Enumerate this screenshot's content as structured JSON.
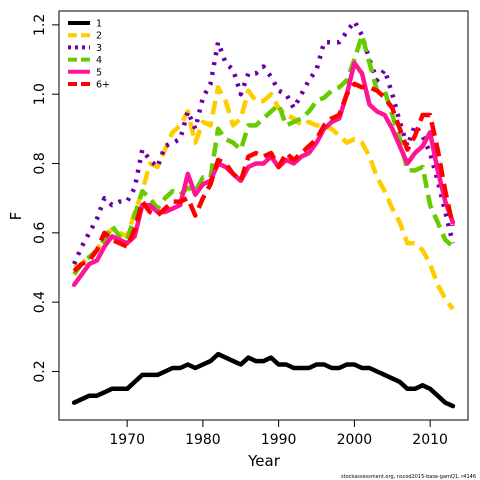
{
  "chart_data": {
    "type": "line",
    "xlabel": "Year",
    "ylabel": "F",
    "xlim": [
      1961,
      2015
    ],
    "ylim": [
      0.06,
      1.24
    ],
    "xticks": [
      1970,
      1980,
      1990,
      2000,
      2010
    ],
    "yticks": [
      0.2,
      0.4,
      0.6,
      0.8,
      1.0,
      1.2
    ],
    "ytick_labels": [
      "0.2",
      "0.4",
      "0.6",
      "0.8",
      "1.0",
      "1.2"
    ],
    "legend_position": "top-left",
    "x": [
      1963,
      1964,
      1965,
      1966,
      1967,
      1968,
      1969,
      1970,
      1971,
      1972,
      1973,
      1974,
      1975,
      1976,
      1977,
      1978,
      1979,
      1980,
      1981,
      1982,
      1983,
      1984,
      1985,
      1986,
      1987,
      1988,
      1989,
      1990,
      1991,
      1992,
      1993,
      1994,
      1995,
      1996,
      1997,
      1998,
      1999,
      2000,
      2001,
      2002,
      2003,
      2004,
      2005,
      2006,
      2007,
      2008,
      2009,
      2010,
      2011,
      2012,
      2013
    ],
    "series": [
      {
        "name": "1",
        "color": "#000000",
        "dash": "solid",
        "values": [
          0.11,
          0.12,
          0.13,
          0.13,
          0.14,
          0.15,
          0.15,
          0.15,
          0.17,
          0.19,
          0.19,
          0.19,
          0.2,
          0.21,
          0.21,
          0.22,
          0.21,
          0.22,
          0.23,
          0.25,
          0.24,
          0.23,
          0.22,
          0.24,
          0.23,
          0.23,
          0.24,
          0.22,
          0.22,
          0.21,
          0.21,
          0.21,
          0.22,
          0.22,
          0.21,
          0.21,
          0.22,
          0.22,
          0.21,
          0.21,
          0.2,
          0.19,
          0.18,
          0.17,
          0.15,
          0.15,
          0.16,
          0.15,
          0.13,
          0.11,
          0.1
        ]
      },
      {
        "name": "2",
        "color": "#FFCC00",
        "dash": "dashed",
        "values": [
          0.5,
          0.51,
          0.53,
          0.55,
          0.59,
          0.61,
          0.6,
          0.59,
          0.66,
          0.72,
          0.8,
          0.79,
          0.84,
          0.89,
          0.91,
          0.95,
          0.86,
          0.92,
          0.91,
          1.02,
          0.98,
          0.91,
          0.93,
          1.01,
          0.98,
          0.98,
          1.0,
          0.96,
          0.94,
          0.93,
          0.91,
          0.92,
          0.91,
          0.91,
          0.9,
          0.88,
          0.86,
          0.87,
          0.86,
          0.82,
          0.76,
          0.72,
          0.67,
          0.63,
          0.57,
          0.57,
          0.55,
          0.51,
          0.45,
          0.41,
          0.38
        ]
      },
      {
        "name": "3",
        "color": "#6A00A8",
        "dash": "dotted",
        "values": [
          0.51,
          0.56,
          0.6,
          0.64,
          0.7,
          0.68,
          0.69,
          0.69,
          0.73,
          0.84,
          0.81,
          0.79,
          0.85,
          0.86,
          0.87,
          0.95,
          0.9,
          0.99,
          1.03,
          1.15,
          1.09,
          1.07,
          1.0,
          1.06,
          1.06,
          1.08,
          1.05,
          1.01,
          1.0,
          0.96,
          1.0,
          1.04,
          1.07,
          1.15,
          1.15,
          1.15,
          1.18,
          1.21,
          1.17,
          1.1,
          1.04,
          1.07,
          1.0,
          0.92,
          0.85,
          0.91,
          0.88,
          0.83,
          0.75,
          0.66,
          0.57
        ]
      },
      {
        "name": "4",
        "color": "#66CC00",
        "dash": "dashed",
        "values": [
          0.48,
          0.51,
          0.53,
          0.55,
          0.58,
          0.62,
          0.59,
          0.58,
          0.65,
          0.72,
          0.7,
          0.67,
          0.7,
          0.72,
          0.71,
          0.73,
          0.72,
          0.76,
          0.76,
          0.9,
          0.87,
          0.86,
          0.84,
          0.91,
          0.91,
          0.93,
          0.95,
          0.97,
          0.91,
          0.92,
          0.93,
          0.95,
          0.98,
          0.99,
          1.01,
          1.02,
          1.04,
          1.1,
          1.17,
          1.09,
          1.01,
          1.01,
          0.94,
          0.87,
          0.78,
          0.78,
          0.79,
          0.68,
          0.63,
          0.58,
          0.56
        ]
      },
      {
        "name": "5",
        "color": "#FF1493",
        "dash": "solid",
        "values": [
          0.45,
          0.48,
          0.51,
          0.52,
          0.56,
          0.59,
          0.58,
          0.57,
          0.59,
          0.68,
          0.68,
          0.66,
          0.66,
          0.67,
          0.68,
          0.77,
          0.71,
          0.74,
          0.75,
          0.8,
          0.79,
          0.77,
          0.75,
          0.79,
          0.8,
          0.8,
          0.82,
          0.79,
          0.81,
          0.8,
          0.82,
          0.83,
          0.86,
          0.9,
          0.92,
          0.93,
          1.0,
          1.09,
          1.06,
          0.97,
          0.95,
          0.94,
          0.9,
          0.85,
          0.8,
          0.83,
          0.85,
          0.89,
          0.78,
          0.69,
          0.63
        ]
      },
      {
        "name": "6+",
        "color": "#FF0000",
        "dash": "dashed",
        "values": [
          0.49,
          0.51,
          0.52,
          0.55,
          0.6,
          0.58,
          0.57,
          0.56,
          0.61,
          0.69,
          0.66,
          0.65,
          0.67,
          0.69,
          0.69,
          0.7,
          0.65,
          0.7,
          0.74,
          0.81,
          0.8,
          0.77,
          0.75,
          0.82,
          0.83,
          0.82,
          0.83,
          0.79,
          0.83,
          0.81,
          0.83,
          0.85,
          0.87,
          0.91,
          0.93,
          0.94,
          1.0,
          1.03,
          1.02,
          1.02,
          1.01,
          0.99,
          0.96,
          0.9,
          0.84,
          0.88,
          0.94,
          0.94,
          0.84,
          0.72,
          0.62
        ]
      }
    ]
  },
  "footer": "stockassessment.org, nscod2015-base-gamQ1, r4146"
}
